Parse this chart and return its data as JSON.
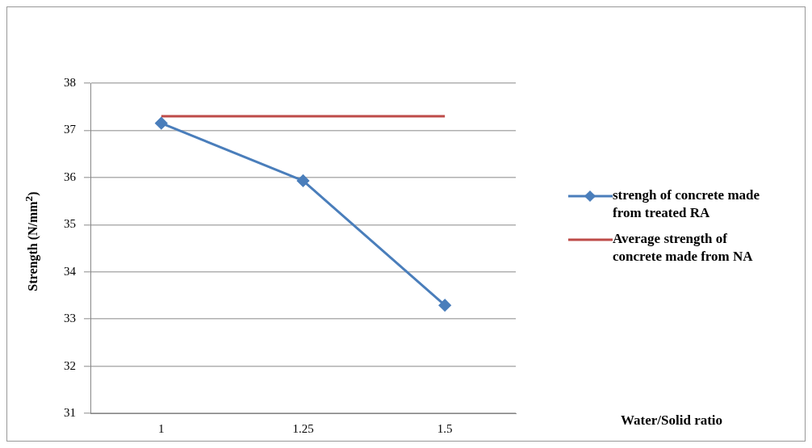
{
  "chart_data": {
    "type": "line",
    "annotations": [
      "Water/Solid ratio"
    ],
    "ylabel": "Strength (N/mm$^{2}$)",
    "categories": [
      "1",
      "1.25",
      "1.5"
    ],
    "series": [
      {
        "name": "strengh of concrete made from treated RA",
        "color": "#4a7ebb",
        "values": [
          37.15,
          35.93,
          33.29
        ],
        "marker": "diamond"
      },
      {
        "name": "Average strength of concrete made from NA",
        "color": "#be4b48",
        "values": [
          37.3,
          37.3,
          37.3
        ],
        "marker": "none"
      }
    ],
    "ylim": [
      31,
      38
    ],
    "yticks": [
      31,
      32,
      33,
      34,
      35,
      36,
      37,
      38
    ],
    "grid": "y",
    "legend": "right",
    "line_style": "solid"
  }
}
